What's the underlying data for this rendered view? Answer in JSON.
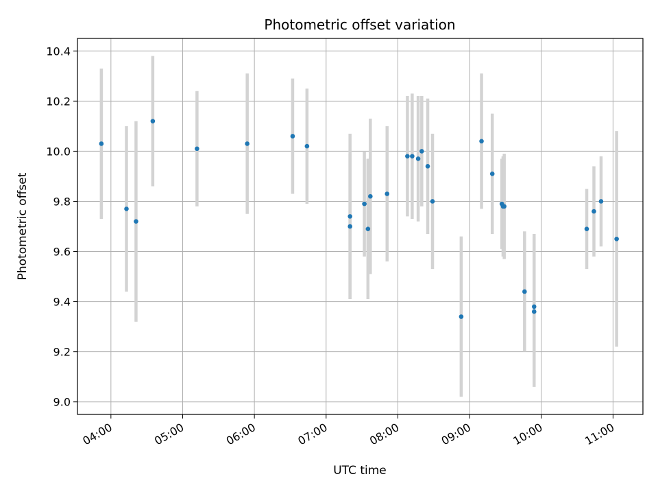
{
  "chart_data": {
    "type": "scatter",
    "title": "Photometric offset variation",
    "xlabel": "UTC time",
    "ylabel": "Photometric offset",
    "x_ticks": [
      "04:00",
      "05:00",
      "06:00",
      "07:00",
      "08:00",
      "09:00",
      "10:00",
      "11:00"
    ],
    "y_ticks": [
      "9.0",
      "9.2",
      "9.4",
      "9.6",
      "9.8",
      "10.0",
      "10.2",
      "10.4"
    ],
    "xlim": [
      "03:32",
      "11:25"
    ],
    "ylim": [
      8.95,
      10.45
    ],
    "grid": true,
    "marker_color": "#1f77b4",
    "errorbar_color": "#d3d3d3",
    "series": [
      {
        "points": [
          {
            "t": "03:52",
            "y": 10.03,
            "err": 0.3
          },
          {
            "t": "04:13",
            "y": 9.77,
            "err": 0.33
          },
          {
            "t": "04:21",
            "y": 9.72,
            "err": 0.4
          },
          {
            "t": "04:35",
            "y": 10.12,
            "err": 0.26
          },
          {
            "t": "05:12",
            "y": 10.01,
            "err": 0.23
          },
          {
            "t": "05:54",
            "y": 10.03,
            "err": 0.28
          },
          {
            "t": "06:32",
            "y": 10.06,
            "err": 0.23
          },
          {
            "t": "06:44",
            "y": 10.02,
            "err": 0.23
          },
          {
            "t": "07:20",
            "y": 9.7,
            "err": 0.29
          },
          {
            "t": "07:20",
            "y": 9.74,
            "err": 0.33
          },
          {
            "t": "07:32",
            "y": 9.79,
            "err": 0.21
          },
          {
            "t": "07:35",
            "y": 9.69,
            "err": 0.28
          },
          {
            "t": "07:37",
            "y": 9.82,
            "err": 0.31
          },
          {
            "t": "07:51",
            "y": 9.83,
            "err": 0.27
          },
          {
            "t": "08:08",
            "y": 9.98,
            "err": 0.24
          },
          {
            "t": "08:12",
            "y": 9.98,
            "err": 0.25
          },
          {
            "t": "08:17",
            "y": 9.97,
            "err": 0.25
          },
          {
            "t": "08:20",
            "y": 10.0,
            "err": 0.22
          },
          {
            "t": "08:25",
            "y": 9.94,
            "err": 0.27
          },
          {
            "t": "08:29",
            "y": 9.8,
            "err": 0.27
          },
          {
            "t": "08:53",
            "y": 9.34,
            "err": 0.32
          },
          {
            "t": "09:10",
            "y": 10.04,
            "err": 0.27
          },
          {
            "t": "09:19",
            "y": 9.91,
            "err": 0.24
          },
          {
            "t": "09:27",
            "y": 9.79,
            "err": 0.18
          },
          {
            "t": "09:28",
            "y": 9.78,
            "err": 0.2
          },
          {
            "t": "09:29",
            "y": 9.78,
            "err": 0.21
          },
          {
            "t": "09:46",
            "y": 9.44,
            "err": 0.24
          },
          {
            "t": "09:54",
            "y": 9.38,
            "err": 0.29
          },
          {
            "t": "09:54",
            "y": 9.36,
            "err": 0.3
          },
          {
            "t": "10:38",
            "y": 9.69,
            "err": 0.16
          },
          {
            "t": "10:44",
            "y": 9.76,
            "err": 0.18
          },
          {
            "t": "10:50",
            "y": 9.8,
            "err": 0.18
          },
          {
            "t": "11:03",
            "y": 9.65,
            "err": 0.43
          }
        ]
      }
    ]
  }
}
